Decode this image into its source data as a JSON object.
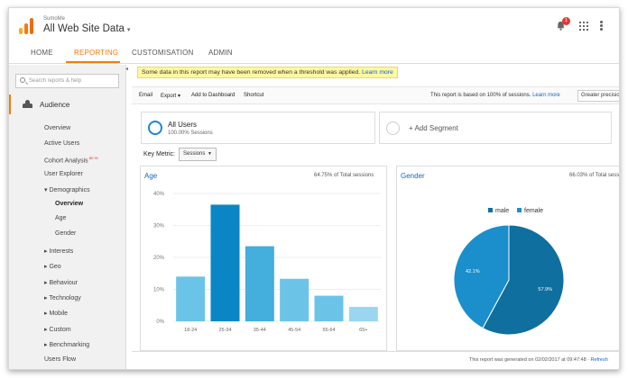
{
  "header": {
    "account": "SumoMe",
    "property": "All Web Site Data",
    "notification_count": "1"
  },
  "nav": {
    "tabs": [
      {
        "label": "HOME"
      },
      {
        "label": "REPORTING"
      },
      {
        "label": "CUSTOMISATION"
      },
      {
        "label": "ADMIN"
      }
    ],
    "active": "REPORTING"
  },
  "sidebar": {
    "search_placeholder": "Search reports & help",
    "section": "Audience",
    "items": [
      {
        "label": "Overview"
      },
      {
        "label": "Active Users"
      },
      {
        "label": "Cohort Analysis",
        "badge": "BETA"
      },
      {
        "label": "User Explorer"
      },
      {
        "label": "▾ Demographics"
      },
      {
        "label": "Overview"
      },
      {
        "label": "Age"
      },
      {
        "label": "Gender"
      },
      {
        "label": "▸ Interests"
      },
      {
        "label": "▸ Geo"
      },
      {
        "label": "▸ Behaviour"
      },
      {
        "label": "▸ Technology"
      },
      {
        "label": "▸ Mobile"
      },
      {
        "label": "▸ Custom"
      },
      {
        "label": "▸ Benchmarking"
      },
      {
        "label": "Users Flow"
      }
    ]
  },
  "notice": {
    "text": "Some data in this report may have been removed when a threshold was applied.",
    "link": "Learn more"
  },
  "toolbar": {
    "email": "Email",
    "export": "Export ▾",
    "add_dashboard": "Add to Dashboard",
    "shortcut": "Shortcut",
    "based_text": "This report is based on 100% of sessions.",
    "learn_more": "Learn more",
    "precision": "Greater precisio"
  },
  "segments": {
    "all_users": "All Users",
    "all_users_sub": "100.00% Sessions",
    "add_segment": "+ Add Segment"
  },
  "key_metric": {
    "label": "Key Metric:",
    "value": "Sessions"
  },
  "age_card": {
    "title": "Age",
    "meta": "64.75% of Total sessions"
  },
  "gender_card": {
    "title": "Gender",
    "meta": "66.03% of Total sess"
  },
  "footer": {
    "text": "This report was generated on 02/02/2017 at 09:47:48 ·",
    "refresh": "Refresh"
  },
  "colors": {
    "accent": "#f57c00",
    "bar_highlight": "#0a86c4",
    "bar_mid": "#44aedd",
    "bar_light": "#6cc3e8",
    "bar_faint": "#9ad6f0",
    "male": "#0f6f9f",
    "female": "#1a8fcc"
  },
  "chart_data": [
    {
      "type": "bar",
      "title": "Age",
      "categories": [
        "18-24",
        "25-34",
        "35-44",
        "45-54",
        "55-64",
        "65+"
      ],
      "values": [
        14,
        36.5,
        23.5,
        13.3,
        8,
        4.5
      ],
      "ylim": [
        0,
        40
      ],
      "yticks": [
        "0%",
        "10%",
        "20%",
        "30%",
        "40%"
      ],
      "grid": true
    },
    {
      "type": "pie",
      "title": "Gender",
      "series": [
        {
          "name": "male",
          "value": 57.9,
          "label": "57.9%"
        },
        {
          "name": "female",
          "value": 42.1,
          "label": "42.1%"
        }
      ],
      "legend": "top"
    }
  ]
}
